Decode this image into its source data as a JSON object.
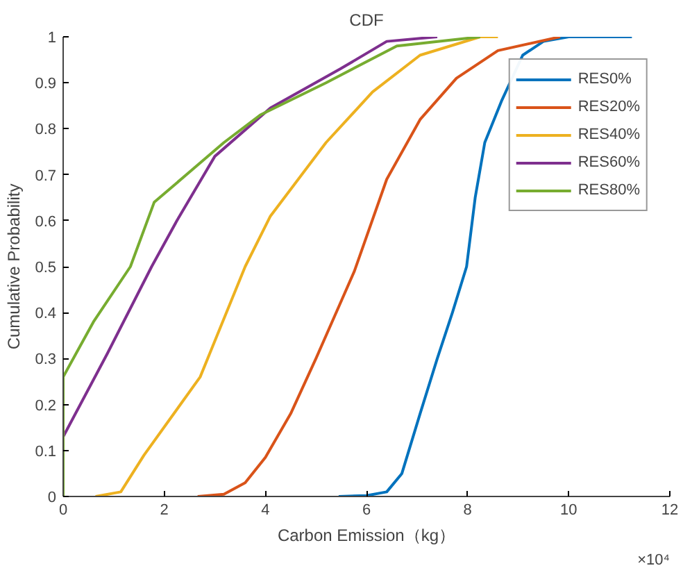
{
  "chart_data": {
    "type": "line",
    "title": "CDF",
    "xlabel": "Carbon Emission（kg）",
    "ylabel": "Cumulative Probability",
    "annotations": [
      "×10⁴"
    ],
    "xlim": [
      0,
      12
    ],
    "xticks": [
      0,
      2,
      4,
      6,
      8,
      10,
      12
    ],
    "ylim": [
      0,
      1
    ],
    "yticks": [
      0,
      0.1,
      0.2,
      0.3,
      0.4,
      0.5,
      0.6,
      0.7,
      0.8,
      0.9,
      1
    ],
    "grid": false,
    "legend": "top right",
    "line_style": "solid",
    "marker": "none",
    "series": [
      {
        "name": "RES0%",
        "color": "#0072bd",
        "x": [
          5.45,
          6.0,
          6.4,
          6.7,
          7.06,
          7.4,
          7.7,
          7.98,
          8.15,
          8.34,
          8.67,
          9.09,
          9.5,
          10.0,
          11.25
        ],
        "values": [
          0,
          0.002,
          0.01,
          0.05,
          0.18,
          0.3,
          0.4,
          0.5,
          0.65,
          0.77,
          0.86,
          0.96,
          0.99,
          1,
          1
        ]
      },
      {
        "name": "RES20%",
        "color": "#d95319",
        "x": [
          2.66,
          3.18,
          3.6,
          4.0,
          4.5,
          5.0,
          5.48,
          5.76,
          6.4,
          7.06,
          7.78,
          8.6,
          9.83
        ],
        "values": [
          0,
          0.005,
          0.03,
          0.085,
          0.18,
          0.3,
          0.42,
          0.49,
          0.69,
          0.82,
          0.91,
          0.97,
          1
        ]
      },
      {
        "name": "RES40%",
        "color": "#edb120",
        "x": [
          0.64,
          1.14,
          1.6,
          2.71,
          3.6,
          4.1,
          5.2,
          6.12,
          7.06,
          8.25,
          8.6
        ],
        "values": [
          0,
          0.01,
          0.09,
          0.26,
          0.5,
          0.61,
          0.77,
          0.88,
          0.96,
          1,
          1
        ]
      },
      {
        "name": "RES60%",
        "color": "#7e2f8e",
        "x": [
          0,
          0.87,
          1.75,
          2.25,
          3.0,
          4.1,
          5.48,
          6.4,
          7.4
        ],
        "values": [
          0.13,
          0.31,
          0.5,
          0.6,
          0.74,
          0.845,
          0.93,
          0.99,
          1
        ]
      },
      {
        "name": "RES80%",
        "color": "#77ac30",
        "x": [
          0,
          0,
          0.6,
          1.33,
          1.8,
          3.18,
          3.9,
          5.2,
          6.6,
          8.25
        ],
        "values": [
          0,
          0.26,
          0.38,
          0.5,
          0.64,
          0.77,
          0.83,
          0.9,
          0.98,
          1
        ]
      }
    ]
  }
}
